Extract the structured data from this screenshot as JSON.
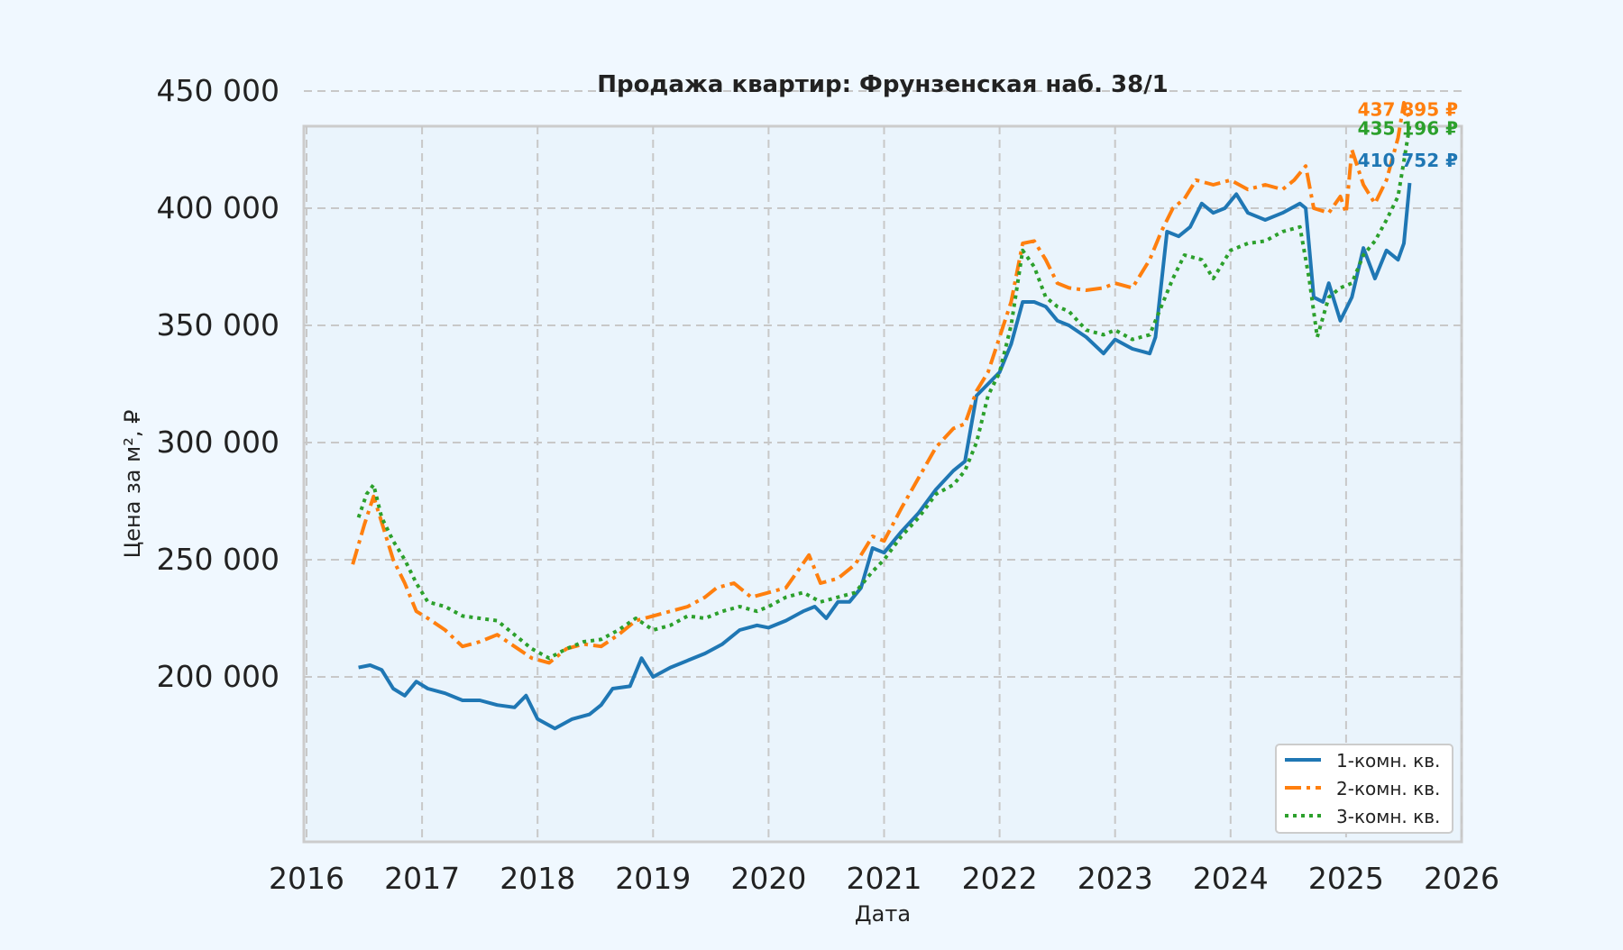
{
  "chart_data": {
    "type": "line",
    "title": "Продажа квартир: Фрунзенская наб. 38/1",
    "xlabel": "Дата",
    "ylabel": "Цена за м², ₽",
    "xlim": [
      2016.0,
      2026.0
    ],
    "ylim": [
      165000,
      470000
    ],
    "x_ticks": [
      2016,
      2017,
      2018,
      2019,
      2020,
      2021,
      2022,
      2023,
      2024,
      2025,
      2026
    ],
    "x_tick_labels": [
      "2016",
      "2017",
      "2018",
      "2019",
      "2020",
      "2021",
      "2022",
      "2023",
      "2024",
      "2025",
      "2026"
    ],
    "y_ticks": [
      200000,
      250000,
      300000,
      350000,
      400000,
      450000
    ],
    "y_tick_labels": [
      "200 000",
      "250 000",
      "300 000",
      "350 000",
      "400 000",
      "450 000"
    ],
    "grid": true,
    "legend_position": "bottom-right",
    "series": [
      {
        "name": "1-комн. кв.",
        "color": "#1f77b4",
        "style": "solid",
        "end_label": "410 752 ₽",
        "points": [
          [
            2016.45,
            204000
          ],
          [
            2016.55,
            205000
          ],
          [
            2016.65,
            203000
          ],
          [
            2016.75,
            195000
          ],
          [
            2016.85,
            192000
          ],
          [
            2016.95,
            198000
          ],
          [
            2017.05,
            195000
          ],
          [
            2017.2,
            193000
          ],
          [
            2017.35,
            190000
          ],
          [
            2017.5,
            190000
          ],
          [
            2017.65,
            188000
          ],
          [
            2017.8,
            187000
          ],
          [
            2017.9,
            192000
          ],
          [
            2018.0,
            182000
          ],
          [
            2018.15,
            178000
          ],
          [
            2018.3,
            182000
          ],
          [
            2018.45,
            184000
          ],
          [
            2018.55,
            188000
          ],
          [
            2018.65,
            195000
          ],
          [
            2018.8,
            196000
          ],
          [
            2018.9,
            208000
          ],
          [
            2019.0,
            200000
          ],
          [
            2019.15,
            204000
          ],
          [
            2019.3,
            207000
          ],
          [
            2019.45,
            210000
          ],
          [
            2019.6,
            214000
          ],
          [
            2019.75,
            220000
          ],
          [
            2019.9,
            222000
          ],
          [
            2020.0,
            221000
          ],
          [
            2020.15,
            224000
          ],
          [
            2020.3,
            228000
          ],
          [
            2020.4,
            230000
          ],
          [
            2020.5,
            225000
          ],
          [
            2020.6,
            232000
          ],
          [
            2020.7,
            232000
          ],
          [
            2020.8,
            238000
          ],
          [
            2020.9,
            255000
          ],
          [
            2021.0,
            253000
          ],
          [
            2021.15,
            262000
          ],
          [
            2021.3,
            270000
          ],
          [
            2021.45,
            280000
          ],
          [
            2021.6,
            288000
          ],
          [
            2021.7,
            292000
          ],
          [
            2021.8,
            320000
          ],
          [
            2021.9,
            325000
          ],
          [
            2022.0,
            330000
          ],
          [
            2022.1,
            342000
          ],
          [
            2022.2,
            360000
          ],
          [
            2022.3,
            360000
          ],
          [
            2022.4,
            358000
          ],
          [
            2022.5,
            352000
          ],
          [
            2022.6,
            350000
          ],
          [
            2022.75,
            345000
          ],
          [
            2022.9,
            338000
          ],
          [
            2023.0,
            344000
          ],
          [
            2023.15,
            340000
          ],
          [
            2023.3,
            338000
          ],
          [
            2023.35,
            345000
          ],
          [
            2023.45,
            390000
          ],
          [
            2023.55,
            388000
          ],
          [
            2023.65,
            392000
          ],
          [
            2023.75,
            402000
          ],
          [
            2023.85,
            398000
          ],
          [
            2023.95,
            400000
          ],
          [
            2024.05,
            406000
          ],
          [
            2024.15,
            398000
          ],
          [
            2024.3,
            395000
          ],
          [
            2024.45,
            398000
          ],
          [
            2024.6,
            402000
          ],
          [
            2024.65,
            400000
          ],
          [
            2024.72,
            362000
          ],
          [
            2024.8,
            360000
          ],
          [
            2024.85,
            368000
          ],
          [
            2024.95,
            352000
          ],
          [
            2025.05,
            362000
          ],
          [
            2025.15,
            383000
          ],
          [
            2025.25,
            370000
          ],
          [
            2025.35,
            382000
          ],
          [
            2025.45,
            378000
          ],
          [
            2025.5,
            385000
          ],
          [
            2025.55,
            410752
          ]
        ]
      },
      {
        "name": "2-комн. кв.",
        "color": "#ff7f0e",
        "style": "dashdot",
        "end_label": "437 895 ₽",
        "points": [
          [
            2016.4,
            248000
          ],
          [
            2016.5,
            265000
          ],
          [
            2016.58,
            277000
          ],
          [
            2016.65,
            266000
          ],
          [
            2016.75,
            250000
          ],
          [
            2016.85,
            240000
          ],
          [
            2016.95,
            228000
          ],
          [
            2017.05,
            225000
          ],
          [
            2017.2,
            220000
          ],
          [
            2017.35,
            213000
          ],
          [
            2017.5,
            215000
          ],
          [
            2017.65,
            218000
          ],
          [
            2017.8,
            213000
          ],
          [
            2017.95,
            208000
          ],
          [
            2018.1,
            206000
          ],
          [
            2018.25,
            212000
          ],
          [
            2018.4,
            214000
          ],
          [
            2018.55,
            213000
          ],
          [
            2018.7,
            218000
          ],
          [
            2018.85,
            224000
          ],
          [
            2019.0,
            226000
          ],
          [
            2019.15,
            228000
          ],
          [
            2019.3,
            230000
          ],
          [
            2019.45,
            234000
          ],
          [
            2019.55,
            238000
          ],
          [
            2019.7,
            240000
          ],
          [
            2019.85,
            234000
          ],
          [
            2020.0,
            236000
          ],
          [
            2020.15,
            238000
          ],
          [
            2020.25,
            245000
          ],
          [
            2020.35,
            252000
          ],
          [
            2020.45,
            240000
          ],
          [
            2020.6,
            242000
          ],
          [
            2020.75,
            248000
          ],
          [
            2020.9,
            260000
          ],
          [
            2021.0,
            258000
          ],
          [
            2021.15,
            272000
          ],
          [
            2021.3,
            285000
          ],
          [
            2021.45,
            298000
          ],
          [
            2021.6,
            306000
          ],
          [
            2021.7,
            308000
          ],
          [
            2021.8,
            322000
          ],
          [
            2021.9,
            330000
          ],
          [
            2022.0,
            345000
          ],
          [
            2022.1,
            360000
          ],
          [
            2022.2,
            385000
          ],
          [
            2022.3,
            386000
          ],
          [
            2022.4,
            378000
          ],
          [
            2022.5,
            368000
          ],
          [
            2022.6,
            366000
          ],
          [
            2022.75,
            365000
          ],
          [
            2022.9,
            366000
          ],
          [
            2023.0,
            368000
          ],
          [
            2023.15,
            366000
          ],
          [
            2023.3,
            378000
          ],
          [
            2023.4,
            390000
          ],
          [
            2023.5,
            400000
          ],
          [
            2023.6,
            404000
          ],
          [
            2023.7,
            412000
          ],
          [
            2023.85,
            410000
          ],
          [
            2024.0,
            412000
          ],
          [
            2024.15,
            408000
          ],
          [
            2024.3,
            410000
          ],
          [
            2024.45,
            408000
          ],
          [
            2024.55,
            412000
          ],
          [
            2024.65,
            418000
          ],
          [
            2024.72,
            400000
          ],
          [
            2024.85,
            398000
          ],
          [
            2024.95,
            405000
          ],
          [
            2025.0,
            398000
          ],
          [
            2025.05,
            425000
          ],
          [
            2025.15,
            410000
          ],
          [
            2025.25,
            402000
          ],
          [
            2025.35,
            412000
          ],
          [
            2025.45,
            430000
          ],
          [
            2025.5,
            445000
          ],
          [
            2025.55,
            437895
          ]
        ]
      },
      {
        "name": "3-комн. кв.",
        "color": "#2ca02c",
        "style": "dotted",
        "end_label": "435 196 ₽",
        "points": [
          [
            2016.45,
            268000
          ],
          [
            2016.52,
            278000
          ],
          [
            2016.58,
            282000
          ],
          [
            2016.65,
            268000
          ],
          [
            2016.75,
            258000
          ],
          [
            2016.85,
            250000
          ],
          [
            2016.95,
            240000
          ],
          [
            2017.05,
            232000
          ],
          [
            2017.2,
            230000
          ],
          [
            2017.35,
            226000
          ],
          [
            2017.5,
            225000
          ],
          [
            2017.65,
            224000
          ],
          [
            2017.8,
            218000
          ],
          [
            2017.95,
            212000
          ],
          [
            2018.1,
            208000
          ],
          [
            2018.25,
            212000
          ],
          [
            2018.4,
            215000
          ],
          [
            2018.55,
            216000
          ],
          [
            2018.7,
            220000
          ],
          [
            2018.85,
            225000
          ],
          [
            2019.0,
            220000
          ],
          [
            2019.15,
            222000
          ],
          [
            2019.3,
            226000
          ],
          [
            2019.45,
            225000
          ],
          [
            2019.6,
            228000
          ],
          [
            2019.75,
            230000
          ],
          [
            2019.9,
            228000
          ],
          [
            2020.0,
            230000
          ],
          [
            2020.15,
            234000
          ],
          [
            2020.3,
            236000
          ],
          [
            2020.45,
            232000
          ],
          [
            2020.6,
            234000
          ],
          [
            2020.75,
            236000
          ],
          [
            2020.9,
            245000
          ],
          [
            2021.0,
            250000
          ],
          [
            2021.15,
            260000
          ],
          [
            2021.3,
            268000
          ],
          [
            2021.45,
            278000
          ],
          [
            2021.6,
            282000
          ],
          [
            2021.7,
            288000
          ],
          [
            2021.8,
            300000
          ],
          [
            2021.9,
            320000
          ],
          [
            2022.0,
            330000
          ],
          [
            2022.1,
            350000
          ],
          [
            2022.2,
            382000
          ],
          [
            2022.3,
            375000
          ],
          [
            2022.4,
            362000
          ],
          [
            2022.5,
            358000
          ],
          [
            2022.6,
            356000
          ],
          [
            2022.75,
            348000
          ],
          [
            2022.9,
            346000
          ],
          [
            2023.0,
            348000
          ],
          [
            2023.15,
            344000
          ],
          [
            2023.3,
            346000
          ],
          [
            2023.4,
            358000
          ],
          [
            2023.5,
            370000
          ],
          [
            2023.6,
            380000
          ],
          [
            2023.75,
            378000
          ],
          [
            2023.85,
            370000
          ],
          [
            2024.0,
            382000
          ],
          [
            2024.15,
            385000
          ],
          [
            2024.3,
            386000
          ],
          [
            2024.45,
            390000
          ],
          [
            2024.6,
            392000
          ],
          [
            2024.68,
            370000
          ],
          [
            2024.75,
            345000
          ],
          [
            2024.85,
            362000
          ],
          [
            2024.95,
            366000
          ],
          [
            2025.05,
            368000
          ],
          [
            2025.15,
            380000
          ],
          [
            2025.25,
            386000
          ],
          [
            2025.35,
            395000
          ],
          [
            2025.45,
            405000
          ],
          [
            2025.5,
            420000
          ],
          [
            2025.55,
            435196
          ]
        ]
      }
    ]
  }
}
